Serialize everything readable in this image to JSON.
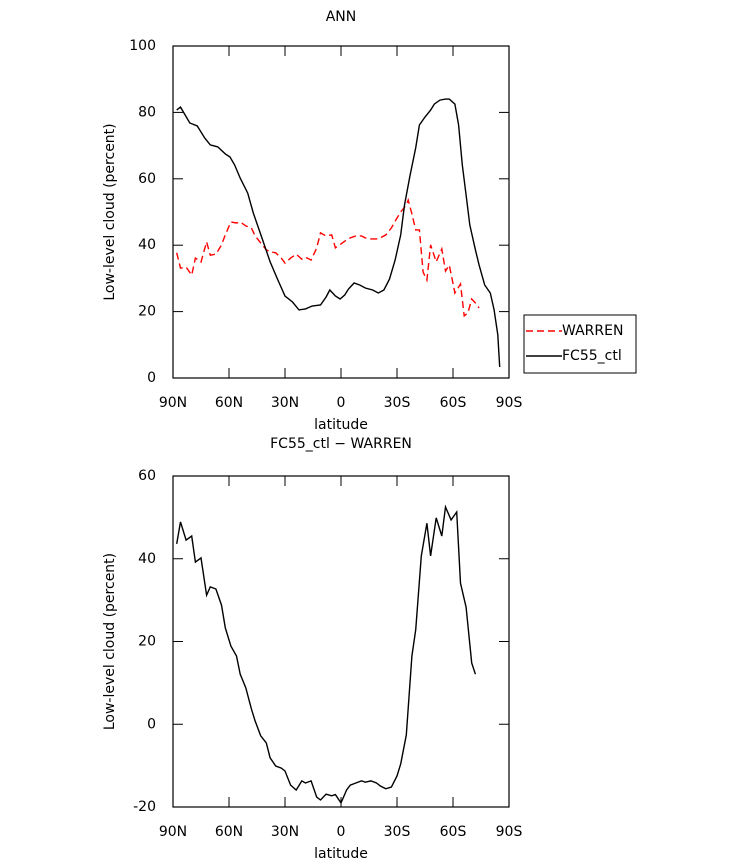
{
  "chart_data": [
    {
      "type": "line",
      "title": "ANN",
      "xlabel": "latitude",
      "ylabel": "Low-level cloud (percent)",
      "xlim": [
        90,
        -90
      ],
      "xticks": [
        {
          "value": 90,
          "label": "90N"
        },
        {
          "value": 60,
          "label": "60N"
        },
        {
          "value": 30,
          "label": "30N"
        },
        0,
        {
          "value": -30,
          "label": "30S"
        },
        {
          "value": -60,
          "label": "60S"
        },
        {
          "value": -90,
          "label": "90S"
        }
      ],
      "ylim": [
        0,
        100
      ],
      "yticks": [
        0,
        20,
        40,
        60,
        80,
        100
      ],
      "legend": "right",
      "series": [
        {
          "name": "WARREN",
          "color": "#ff0000",
          "linestyle": "dashed",
          "x": [
            88,
            86,
            83,
            80,
            78,
            75,
            72,
            70,
            67,
            64,
            62,
            59,
            56,
            54,
            51,
            48,
            46,
            43,
            40,
            38,
            35,
            32,
            30,
            27,
            24,
            21,
            19,
            16,
            13,
            11,
            8,
            5,
            3,
            0,
            -3,
            -5,
            -8,
            -11,
            -13,
            -16,
            -19,
            -21,
            -24,
            -27,
            -30,
            -32,
            -35,
            -36,
            -38,
            -40,
            -42,
            -44,
            -46,
            -48,
            -51,
            -54,
            -56,
            -58,
            -61,
            -64,
            -66,
            -68,
            -70,
            -72,
            -74
          ],
          "values": [
            37.7,
            33.1,
            33.4,
            31.0,
            36.1,
            34.9,
            41.0,
            37.0,
            37.3,
            40.1,
            43.1,
            47.0,
            46.7,
            47.0,
            45.8,
            45.2,
            42.8,
            40.7,
            38.6,
            38.0,
            37.7,
            36.1,
            34.6,
            36.1,
            37.3,
            35.8,
            36.4,
            35.5,
            39.2,
            43.7,
            42.8,
            43.1,
            39.2,
            40.4,
            41.6,
            42.2,
            42.8,
            42.8,
            42.2,
            41.9,
            41.9,
            42.2,
            43.1,
            45.2,
            48.2,
            50.0,
            52.1,
            53.6,
            49.4,
            44.6,
            44.6,
            31.9,
            29.5,
            40.1,
            35.0,
            38.9,
            32.2,
            34.0,
            25.6,
            28.3,
            18.7,
            19.6,
            23.8,
            22.6,
            21.1
          ]
        },
        {
          "name": "FC55_ctl",
          "color": "#000000",
          "linestyle": "solid",
          "x": [
            88,
            86,
            81,
            77,
            73,
            70,
            66,
            62,
            59.5,
            57,
            54,
            50,
            47,
            42,
            38,
            34,
            30,
            26,
            22.5,
            19,
            15.5,
            11,
            8,
            6,
            3,
            0.5,
            -2,
            -4,
            -7,
            -10,
            -13,
            -17,
            -20,
            -23,
            -26,
            -29,
            -32,
            -34,
            -37,
            -40,
            -42,
            -45,
            -48,
            -50,
            -53,
            -56,
            -58,
            -61,
            -63,
            -65,
            -67,
            -69,
            -72,
            -74,
            -77,
            -80,
            -82,
            -84,
            -85
          ],
          "values": [
            80.7,
            81.6,
            76.8,
            75.9,
            72.3,
            70.2,
            69.6,
            67.5,
            66.6,
            64.2,
            60.2,
            55.7,
            49.7,
            41.6,
            35.0,
            29.8,
            24.7,
            22.9,
            20.5,
            20.8,
            21.7,
            22.0,
            24.4,
            26.5,
            24.7,
            23.8,
            25.0,
            26.8,
            28.6,
            28.0,
            27.1,
            26.5,
            25.6,
            26.5,
            29.8,
            35.5,
            43.1,
            52.1,
            61.1,
            69.3,
            76.2,
            78.6,
            80.7,
            82.5,
            83.7,
            84.0,
            84.0,
            82.5,
            76.2,
            64.2,
            55.1,
            46.1,
            38.6,
            34.0,
            28.0,
            25.6,
            20.5,
            13.0,
            3.3
          ]
        }
      ]
    },
    {
      "type": "line",
      "title": "FC55_ctl − WARREN",
      "xlabel": "latitude",
      "ylabel": "Low-level cloud (percent)",
      "xlim": [
        90,
        -90
      ],
      "xticks": [
        {
          "value": 90,
          "label": "90N"
        },
        {
          "value": 60,
          "label": "60N"
        },
        {
          "value": 30,
          "label": "30N"
        },
        0,
        {
          "value": -30,
          "label": "30S"
        },
        {
          "value": -60,
          "label": "60S"
        },
        {
          "value": -90,
          "label": "90S"
        }
      ],
      "ylim": [
        -20,
        60
      ],
      "yticks": [
        -20,
        0,
        20,
        40,
        60
      ],
      "series": [
        {
          "color": "#000000",
          "linestyle": "solid",
          "x": [
            88,
            86,
            83,
            80,
            78,
            75,
            72,
            70,
            67,
            64,
            62,
            59,
            56,
            54,
            51,
            48,
            46,
            43,
            40,
            38,
            35,
            32,
            30,
            27,
            24,
            21,
            19,
            16,
            13,
            11,
            8,
            5,
            3,
            0,
            -3,
            -5,
            -8,
            -11,
            -13,
            -16,
            -19,
            -21,
            -24,
            -27,
            -30,
            -32,
            -35,
            -38,
            -40,
            -43,
            -46,
            -48,
            -51,
            -54,
            -56,
            -59,
            -62,
            -64,
            -67,
            -70,
            -72
          ],
          "values": [
            43.6,
            48.9,
            44.5,
            45.5,
            39.2,
            40.2,
            31.2,
            33.2,
            32.7,
            28.8,
            23.3,
            18.9,
            16.5,
            12.1,
            8.8,
            3.7,
            0.8,
            -2.8,
            -4.5,
            -8.1,
            -10.1,
            -10.6,
            -11.3,
            -14.7,
            -15.9,
            -13.7,
            -14.2,
            -13.7,
            -17.6,
            -18.3,
            -16.9,
            -17.3,
            -17.0,
            -19.0,
            -15.9,
            -14.7,
            -14.2,
            -13.7,
            -14.0,
            -13.7,
            -14.2,
            -14.9,
            -15.6,
            -15.2,
            -12.5,
            -9.6,
            -2.6,
            16.5,
            22.8,
            40.7,
            48.6,
            40.7,
            49.9,
            45.5,
            52.5,
            49.4,
            51.3,
            34.1,
            28.3,
            14.8,
            12.1
          ]
        }
      ]
    }
  ]
}
